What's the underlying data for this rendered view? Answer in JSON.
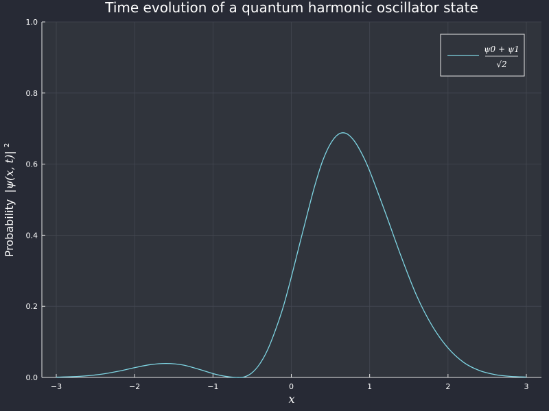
{
  "chart_data": {
    "type": "line",
    "title": "Time evolution of a quantum harmonic oscillator state",
    "xlabel": "x",
    "ylabel_prefix": "Probability",
    "ylabel_math": "|ψ(x, t)|",
    "ylabel_exponent": "2",
    "xlim": [
      -3,
      3
    ],
    "ylim": [
      0,
      1
    ],
    "xticks": [
      -3,
      -2,
      -1,
      0,
      1,
      2,
      3
    ],
    "xtick_labels": [
      "−3",
      "−2",
      "−1",
      "0",
      "1",
      "2",
      "3"
    ],
    "yticks": [
      0,
      0.2,
      0.4,
      0.6,
      0.8,
      1
    ],
    "ytick_labels": [
      "0.0",
      "0.2",
      "0.4",
      "0.6",
      "0.8",
      "1.0"
    ],
    "grid": true,
    "legend_position": "top-right",
    "series": [
      {
        "name": "(ψ0 + ψ1)/√2",
        "legend_numerator": "ψ0 + ψ1",
        "legend_denominator": "√2",
        "color": "#7fd6e4",
        "x": [
          -3.0,
          -2.8,
          -2.6,
          -2.4,
          -2.2,
          -2.0,
          -1.8,
          -1.6,
          -1.4,
          -1.2,
          -1.0,
          -0.9,
          -0.8,
          -0.7,
          -0.6,
          -0.5,
          -0.4,
          -0.3,
          -0.2,
          -0.1,
          0.0,
          0.1,
          0.2,
          0.3,
          0.4,
          0.5,
          0.6,
          0.7,
          0.8,
          0.9,
          1.0,
          1.2,
          1.4,
          1.6,
          1.8,
          2.0,
          2.2,
          2.4,
          2.6,
          2.8,
          3.0
        ],
        "y": [
          0.0008,
          0.0021,
          0.0048,
          0.0099,
          0.0178,
          0.0275,
          0.036,
          0.0393,
          0.0356,
          0.0244,
          0.0109,
          0.0055,
          0.0018,
          0.0002,
          0.0014,
          0.0134,
          0.0389,
          0.079,
          0.1347,
          0.2008,
          0.2821,
          0.3696,
          0.4561,
          0.5396,
          0.6093,
          0.6574,
          0.6839,
          0.6864,
          0.6663,
          0.6294,
          0.5809,
          0.4637,
          0.3415,
          0.2298,
          0.1444,
          0.0829,
          0.0423,
          0.0195,
          0.008,
          0.0029,
          0.001
        ]
      }
    ]
  }
}
